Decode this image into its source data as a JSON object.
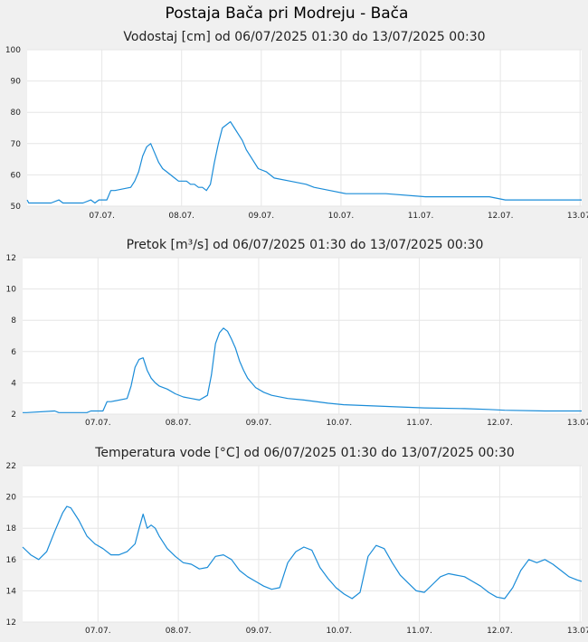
{
  "page_title": "Postaja Bača pri Modreju - Bača",
  "colors": {
    "line": "#1a8cd8",
    "background": "#f0f0f0",
    "plot": "#ffffff",
    "grid": "#e6e6e6"
  },
  "chart_data": [
    {
      "type": "line",
      "title": "Vodostaj [cm] od 06/07/2025 01:30 do 13/07/2025 00:30",
      "x_range": [
        0,
        6.958
      ],
      "x_ticks": [
        0.938,
        1.938,
        2.938,
        3.938,
        4.938,
        5.938,
        6.938
      ],
      "x_tick_labels": [
        "07.07.",
        "08.07.",
        "09.07.",
        "10.07.",
        "11.07.",
        "12.07.",
        "13.07."
      ],
      "ylim": [
        50,
        100
      ],
      "y_ticks": [
        50,
        60,
        70,
        80,
        90,
        100
      ],
      "grid": true,
      "series": [
        {
          "x": [
            0,
            0.02,
            0.05,
            0.3,
            0.4,
            0.45,
            0.5,
            0.7,
            0.8,
            0.85,
            0.9,
            1.0,
            1.05,
            1.1,
            1.3,
            1.35,
            1.4,
            1.45,
            1.5,
            1.55,
            1.6,
            1.65,
            1.7,
            1.75,
            1.8,
            1.85,
            1.9,
            2.0,
            2.05,
            2.1,
            2.15,
            2.2,
            2.25,
            2.3,
            2.35,
            2.4,
            2.45,
            2.5,
            2.55,
            2.6,
            2.65,
            2.7,
            2.75,
            2.8,
            2.85,
            2.9,
            3.0,
            3.1,
            3.3,
            3.5,
            3.6,
            3.8,
            4.0,
            4.5,
            5.0,
            5.5,
            5.8,
            6.0,
            6.5,
            6.958
          ],
          "y": [
            52,
            51,
            51,
            51,
            52,
            51,
            51,
            51,
            52,
            51,
            52,
            52,
            55,
            55,
            56,
            58,
            61,
            66,
            69,
            70,
            67,
            64,
            62,
            61,
            60,
            59,
            58,
            58,
            57,
            57,
            56,
            56,
            55,
            57,
            64,
            70,
            75,
            76,
            77,
            75,
            73,
            71,
            68,
            66,
            64,
            62,
            61,
            59,
            58,
            57,
            56,
            55,
            54,
            54,
            53,
            53,
            53,
            52,
            52,
            52
          ]
        }
      ]
    },
    {
      "type": "line",
      "title": "Pretok [m³/s] od 06/07/2025 01:30 do 13/07/2025 00:30",
      "x_range": [
        0,
        6.958
      ],
      "x_ticks": [
        0.938,
        1.938,
        2.938,
        3.938,
        4.938,
        5.938,
        6.938
      ],
      "x_tick_labels": [
        "07.07.",
        "08.07.",
        "09.07.",
        "10.07.",
        "11.07.",
        "12.07.",
        "13.07."
      ],
      "ylim": [
        2,
        12
      ],
      "y_ticks": [
        2,
        4,
        6,
        8,
        10,
        12
      ],
      "grid": true,
      "series": [
        {
          "x": [
            0,
            0.05,
            0.4,
            0.45,
            0.5,
            0.8,
            0.85,
            0.9,
            1.0,
            1.05,
            1.1,
            1.3,
            1.35,
            1.4,
            1.45,
            1.5,
            1.55,
            1.6,
            1.65,
            1.7,
            1.8,
            1.9,
            2.0,
            2.1,
            2.2,
            2.3,
            2.35,
            2.4,
            2.45,
            2.5,
            2.55,
            2.6,
            2.65,
            2.7,
            2.75,
            2.8,
            2.85,
            2.9,
            3.0,
            3.1,
            3.3,
            3.5,
            3.8,
            4.0,
            4.5,
            5.0,
            5.5,
            5.8,
            6.0,
            6.5,
            6.958
          ],
          "y": [
            2.1,
            2.1,
            2.2,
            2.1,
            2.1,
            2.1,
            2.2,
            2.2,
            2.2,
            2.8,
            2.8,
            3.0,
            3.8,
            5.0,
            5.5,
            5.6,
            4.8,
            4.3,
            4.0,
            3.8,
            3.6,
            3.3,
            3.1,
            3.0,
            2.9,
            3.2,
            4.5,
            6.5,
            7.2,
            7.5,
            7.3,
            6.8,
            6.2,
            5.4,
            4.8,
            4.3,
            4.0,
            3.7,
            3.4,
            3.2,
            3.0,
            2.9,
            2.7,
            2.6,
            2.5,
            2.4,
            2.35,
            2.3,
            2.25,
            2.2,
            2.2
          ]
        }
      ]
    },
    {
      "type": "line",
      "title": "Temperatura vode [°C] od 06/07/2025 01:30 do 13/07/2025 00:30",
      "x_range": [
        0,
        6.958
      ],
      "x_ticks": [
        0.938,
        1.938,
        2.938,
        3.938,
        4.938,
        5.938,
        6.938
      ],
      "x_tick_labels": [
        "07.07.",
        "08.07.",
        "09.07.",
        "10.07.",
        "11.07.",
        "12.07.",
        "13.07."
      ],
      "ylim": [
        12,
        22
      ],
      "y_ticks": [
        12,
        14,
        16,
        18,
        20,
        22
      ],
      "grid": true,
      "series": [
        {
          "x": [
            0,
            0.1,
            0.2,
            0.3,
            0.4,
            0.5,
            0.55,
            0.6,
            0.7,
            0.8,
            0.9,
            1.0,
            1.1,
            1.2,
            1.3,
            1.4,
            1.45,
            1.5,
            1.55,
            1.6,
            1.65,
            1.7,
            1.8,
            1.9,
            2.0,
            2.1,
            2.2,
            2.3,
            2.4,
            2.5,
            2.6,
            2.7,
            2.8,
            2.9,
            3.0,
            3.1,
            3.2,
            3.3,
            3.4,
            3.5,
            3.6,
            3.7,
            3.8,
            3.9,
            4.0,
            4.1,
            4.2,
            4.3,
            4.4,
            4.5,
            4.6,
            4.7,
            4.8,
            4.9,
            5.0,
            5.1,
            5.2,
            5.3,
            5.4,
            5.5,
            5.6,
            5.7,
            5.8,
            5.9,
            6.0,
            6.1,
            6.2,
            6.3,
            6.4,
            6.5,
            6.6,
            6.7,
            6.8,
            6.9,
            6.958
          ],
          "y": [
            16.8,
            16.3,
            16.0,
            16.5,
            17.8,
            19.0,
            19.4,
            19.3,
            18.5,
            17.5,
            17.0,
            16.7,
            16.3,
            16.3,
            16.5,
            17.0,
            18.0,
            18.9,
            18.0,
            18.2,
            18.0,
            17.5,
            16.7,
            16.2,
            15.8,
            15.7,
            15.4,
            15.5,
            16.2,
            16.3,
            16.0,
            15.3,
            14.9,
            14.6,
            14.3,
            14.1,
            14.2,
            15.8,
            16.5,
            16.8,
            16.6,
            15.5,
            14.8,
            14.2,
            13.8,
            13.5,
            13.9,
            16.2,
            16.9,
            16.7,
            15.8,
            15.0,
            14.5,
            14.0,
            13.9,
            14.4,
            14.9,
            15.1,
            15.0,
            14.9,
            14.6,
            14.3,
            13.9,
            13.6,
            13.5,
            14.2,
            15.3,
            16.0,
            15.8,
            16.0,
            15.7,
            15.3,
            14.9,
            14.7,
            14.6
          ]
        }
      ]
    }
  ]
}
